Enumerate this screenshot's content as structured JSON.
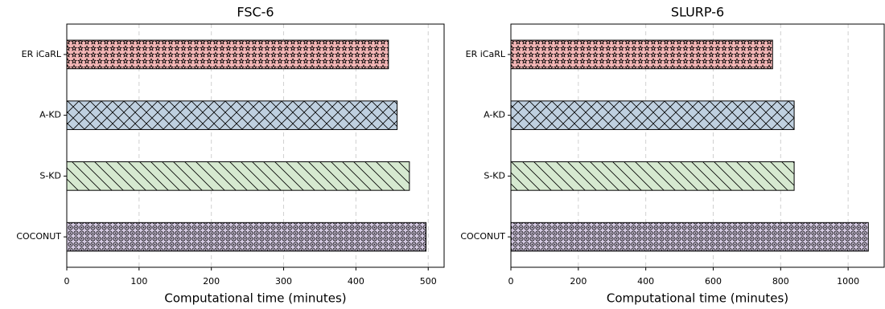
{
  "chart_data": [
    {
      "type": "bar",
      "orientation": "horizontal",
      "title": "FSC-6",
      "x_label": "Computational time (minutes)",
      "categories": [
        "ER iCaRL",
        "A-KD",
        "S-KD",
        "COCONUT"
      ],
      "values": [
        445,
        457,
        474,
        497
      ],
      "colors": [
        "#f4b6b6",
        "#bfd0e0",
        "#d6e9d0",
        "#d3c8e0"
      ],
      "xlim": [
        0,
        522
      ],
      "xticks": [
        0,
        100,
        200,
        300,
        400,
        500
      ],
      "grid": true
    },
    {
      "type": "bar",
      "orientation": "horizontal",
      "title": "SLURP-6",
      "x_label": "Computational time (minutes)",
      "categories": [
        "ER iCaRL",
        "A-KD",
        "S-KD",
        "COCONUT"
      ],
      "values": [
        776,
        840,
        840,
        1060
      ],
      "colors": [
        "#f4b6b6",
        "#bfd0e0",
        "#d6e9d0",
        "#d3c8e0"
      ],
      "xlim": [
        0,
        1107
      ],
      "xticks": [
        0,
        200,
        400,
        600,
        800,
        1000
      ],
      "grid": true
    }
  ]
}
